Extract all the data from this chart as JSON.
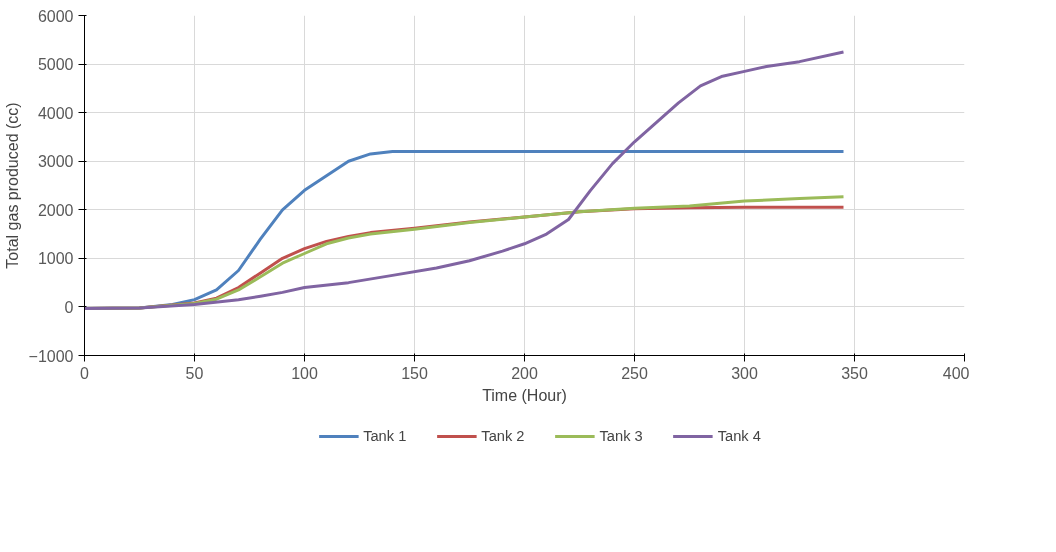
{
  "chart_data": {
    "type": "line",
    "xlabel": "Time (Hour)",
    "ylabel": "Total gas produced (cc)",
    "xlim": [
      0,
      400
    ],
    "xticks": [
      0,
      50,
      100,
      150,
      200,
      250,
      300,
      350,
      400
    ],
    "ylim": [
      -1000,
      6000
    ],
    "yticks": [
      -1000,
      0,
      1000,
      2000,
      3000,
      4000,
      5000,
      6000
    ],
    "grid": true,
    "legend": "bottom",
    "marker": "none",
    "line_style": "solid",
    "series": [
      {
        "name": "Tank 1",
        "color": "#4f81bd",
        "x": [
          0,
          25,
          40,
          50,
          60,
          70,
          80,
          90,
          100,
          110,
          120,
          130,
          140,
          150,
          200,
          250,
          300,
          345
        ],
        "values": [
          -30,
          -20,
          50,
          150,
          350,
          750,
          1400,
          2000,
          2400,
          2700,
          3000,
          3150,
          3200,
          3200,
          3200,
          3200,
          3200,
          3200
        ]
      },
      {
        "name": "Tank 2",
        "color": "#c0504d",
        "x": [
          0,
          25,
          50,
          60,
          70,
          80,
          90,
          100,
          110,
          120,
          130,
          150,
          175,
          200,
          225,
          250,
          275,
          300,
          345
        ],
        "values": [
          -30,
          -20,
          80,
          180,
          400,
          700,
          1000,
          1200,
          1350,
          1450,
          1530,
          1620,
          1750,
          1850,
          1960,
          2020,
          2040,
          2050,
          2050
        ]
      },
      {
        "name": "Tank 3",
        "color": "#9bbb59",
        "x": [
          0,
          25,
          50,
          60,
          70,
          80,
          90,
          100,
          110,
          120,
          130,
          150,
          175,
          200,
          225,
          250,
          275,
          300,
          325,
          345
        ],
        "values": [
          -30,
          -20,
          70,
          160,
          350,
          620,
          900,
          1100,
          1300,
          1420,
          1500,
          1600,
          1740,
          1850,
          1960,
          2030,
          2080,
          2180,
          2230,
          2270
        ]
      },
      {
        "name": "Tank 4",
        "color": "#8064a2",
        "x": [
          0,
          25,
          50,
          70,
          80,
          90,
          100,
          120,
          140,
          160,
          175,
          190,
          200,
          210,
          220,
          230,
          240,
          250,
          260,
          270,
          280,
          290,
          300,
          310,
          325,
          345
        ],
        "values": [
          -30,
          -20,
          50,
          150,
          220,
          300,
          400,
          500,
          650,
          800,
          950,
          1150,
          1300,
          1500,
          1800,
          2400,
          2950,
          3400,
          3800,
          4200,
          4550,
          4750,
          4850,
          4950,
          5050,
          5250
        ]
      }
    ]
  }
}
